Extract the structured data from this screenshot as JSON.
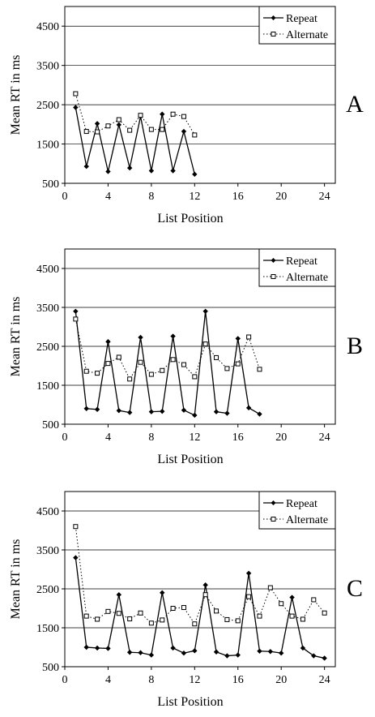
{
  "chart_data": [
    {
      "type": "line",
      "panel_label": "A",
      "xlabel": "List Position",
      "ylabel": "Mean RT in ms",
      "xlim": [
        0,
        25
      ],
      "ylim": [
        500,
        5000
      ],
      "x_ticks": [
        0,
        4,
        8,
        12,
        16,
        20,
        24
      ],
      "y_ticks": [
        500,
        1500,
        2500,
        3500,
        4500
      ],
      "grid": "horizontal",
      "legend": "top-right",
      "series": [
        {
          "name": "Repeat",
          "style": "solid",
          "marker": "filled-diamond",
          "x": [
            1,
            2,
            3,
            4,
            5,
            6,
            7,
            8,
            9,
            10,
            11,
            12
          ],
          "y": [
            2430,
            930,
            2020,
            800,
            1990,
            890,
            2200,
            820,
            2260,
            820,
            1820,
            730
          ]
        },
        {
          "name": "Alternate",
          "style": "dotted",
          "marker": "open-square",
          "x": [
            1,
            2,
            3,
            4,
            5,
            6,
            7,
            8,
            9,
            10,
            11,
            12
          ],
          "y": [
            2780,
            1820,
            1810,
            1960,
            2120,
            1850,
            2230,
            1870,
            1870,
            2260,
            2200,
            1730
          ]
        }
      ]
    },
    {
      "type": "line",
      "panel_label": "B",
      "xlabel": "List Position",
      "ylabel": "Mean RT in ms",
      "xlim": [
        0,
        25
      ],
      "ylim": [
        500,
        5000
      ],
      "x_ticks": [
        0,
        4,
        8,
        12,
        16,
        20,
        24
      ],
      "y_ticks": [
        500,
        1500,
        2500,
        3500,
        4500
      ],
      "grid": "horizontal",
      "legend": "top-right",
      "series": [
        {
          "name": "Repeat",
          "style": "solid",
          "marker": "filled-diamond",
          "x": [
            1,
            2,
            3,
            4,
            5,
            6,
            7,
            8,
            9,
            10,
            11,
            12,
            13,
            14,
            15,
            16,
            17,
            18
          ],
          "y": [
            3400,
            900,
            880,
            2620,
            850,
            800,
            2730,
            820,
            830,
            2760,
            860,
            730,
            3400,
            820,
            780,
            2700,
            920,
            760
          ]
        },
        {
          "name": "Alternate",
          "style": "dotted",
          "marker": "open-square",
          "x": [
            1,
            2,
            3,
            4,
            5,
            6,
            7,
            8,
            9,
            10,
            11,
            12,
            13,
            14,
            15,
            16,
            17,
            18
          ],
          "y": [
            3200,
            1860,
            1810,
            2060,
            2220,
            1660,
            2090,
            1780,
            1880,
            2160,
            2030,
            1720,
            2560,
            2210,
            1930,
            2050,
            2740,
            1910
          ]
        }
      ]
    },
    {
      "type": "line",
      "panel_label": "C",
      "xlabel": "List Position",
      "ylabel": "Mean RT in ms",
      "xlim": [
        0,
        25
      ],
      "ylim": [
        500,
        5000
      ],
      "x_ticks": [
        0,
        4,
        8,
        12,
        16,
        20,
        24
      ],
      "y_ticks": [
        500,
        1500,
        2500,
        3500,
        4500
      ],
      "grid": "horizontal",
      "legend": "top-right",
      "series": [
        {
          "name": "Repeat",
          "style": "solid",
          "marker": "filled-diamond",
          "x": [
            1,
            2,
            3,
            4,
            5,
            6,
            7,
            8,
            9,
            10,
            11,
            12,
            13,
            14,
            15,
            16,
            17,
            18,
            19,
            20,
            21,
            22,
            23,
            24
          ],
          "y": [
            3300,
            1000,
            980,
            970,
            2350,
            870,
            860,
            800,
            2400,
            980,
            850,
            910,
            2600,
            880,
            780,
            800,
            2900,
            900,
            890,
            850,
            2280,
            980,
            780,
            720
          ]
        },
        {
          "name": "Alternate",
          "style": "dotted",
          "marker": "open-square",
          "x": [
            1,
            2,
            3,
            4,
            5,
            6,
            7,
            8,
            9,
            10,
            11,
            12,
            13,
            14,
            15,
            16,
            17,
            18,
            19,
            20,
            21,
            22,
            23,
            24
          ],
          "y": [
            4100,
            1800,
            1720,
            1920,
            1870,
            1730,
            1880,
            1620,
            1700,
            2000,
            2020,
            1600,
            2350,
            1930,
            1710,
            1680,
            2300,
            1800,
            2530,
            2120,
            1800,
            1720,
            2220,
            1880
          ]
        }
      ]
    }
  ]
}
